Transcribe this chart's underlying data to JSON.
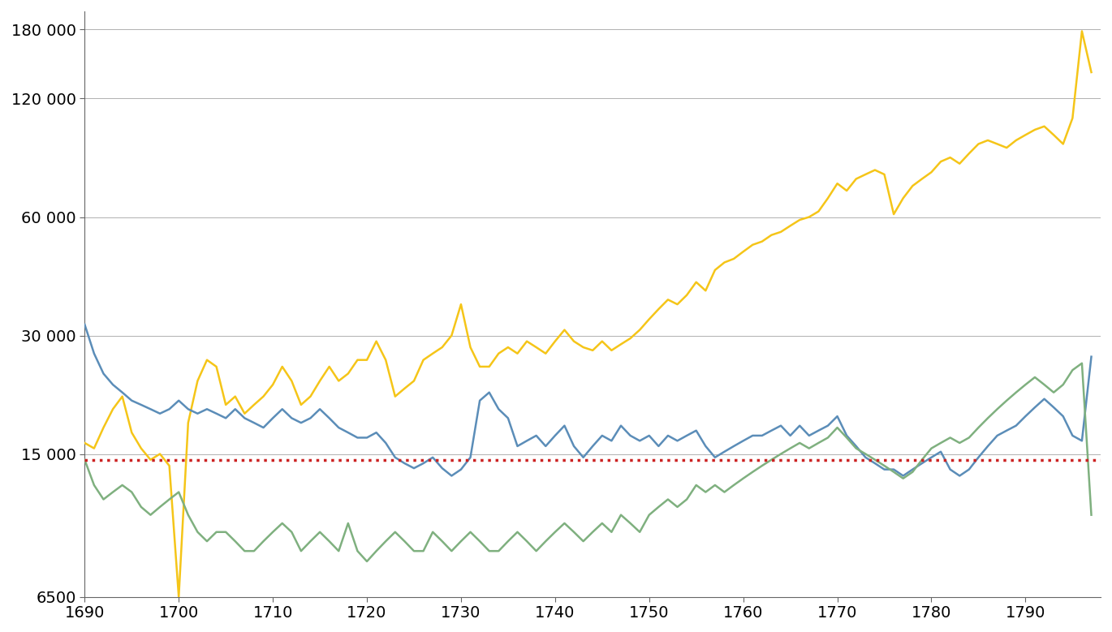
{
  "years": [
    1690,
    1691,
    1692,
    1693,
    1694,
    1695,
    1696,
    1697,
    1698,
    1699,
    1700,
    1701,
    1702,
    1703,
    1704,
    1705,
    1706,
    1707,
    1708,
    1709,
    1710,
    1711,
    1712,
    1713,
    1714,
    1715,
    1716,
    1717,
    1718,
    1719,
    1720,
    1721,
    1722,
    1723,
    1724,
    1725,
    1726,
    1727,
    1728,
    1729,
    1730,
    1731,
    1732,
    1733,
    1734,
    1735,
    1736,
    1737,
    1738,
    1739,
    1740,
    1741,
    1742,
    1743,
    1744,
    1745,
    1746,
    1747,
    1748,
    1749,
    1750,
    1751,
    1752,
    1753,
    1754,
    1755,
    1756,
    1757,
    1758,
    1759,
    1760,
    1761,
    1762,
    1763,
    1764,
    1765,
    1766,
    1767,
    1768,
    1769,
    1770,
    1771,
    1772,
    1773,
    1774,
    1775,
    1776,
    1777,
    1778,
    1779,
    1780,
    1781,
    1782,
    1783,
    1784,
    1785,
    1786,
    1787,
    1788,
    1789,
    1790,
    1791,
    1792,
    1793,
    1794,
    1795,
    1796,
    1797
  ],
  "yellow": [
    16000,
    15500,
    17500,
    19500,
    21000,
    17000,
    15500,
    14500,
    15000,
    14000,
    6500,
    18000,
    23000,
    26000,
    25000,
    20000,
    21000,
    19000,
    20000,
    21000,
    22500,
    25000,
    23000,
    20000,
    21000,
    23000,
    25000,
    23000,
    24000,
    26000,
    26000,
    29000,
    26000,
    21000,
    22000,
    23000,
    26000,
    27000,
    28000,
    30000,
    36000,
    28000,
    25000,
    25000,
    27000,
    28000,
    27000,
    29000,
    28000,
    27000,
    29000,
    31000,
    29000,
    28000,
    27500,
    29000,
    27500,
    28500,
    29500,
    31000,
    33000,
    35000,
    37000,
    36000,
    38000,
    41000,
    39000,
    44000,
    46000,
    47000,
    49000,
    51000,
    52000,
    54000,
    55000,
    57000,
    59000,
    60000,
    62000,
    67000,
    73000,
    70000,
    75000,
    77000,
    79000,
    77000,
    61000,
    67000,
    72000,
    75000,
    78000,
    83000,
    85000,
    82000,
    87000,
    92000,
    94000,
    92000,
    90000,
    94000,
    97000,
    100000,
    102000,
    97000,
    92000,
    107000,
    178000,
    140000
  ],
  "blue": [
    32000,
    27000,
    24000,
    22500,
    21500,
    20500,
    20000,
    19500,
    19000,
    19500,
    20500,
    19500,
    19000,
    19500,
    19000,
    18500,
    19500,
    18500,
    18000,
    17500,
    18500,
    19500,
    18500,
    18000,
    18500,
    19500,
    18500,
    17500,
    17000,
    16500,
    16500,
    17000,
    16000,
    14700,
    14200,
    13800,
    14200,
    14700,
    13800,
    13200,
    13700,
    14700,
    20500,
    21500,
    19500,
    18500,
    15700,
    16200,
    16700,
    15700,
    16700,
    17700,
    15700,
    14700,
    15700,
    16700,
    16200,
    17700,
    16700,
    16200,
    16700,
    15700,
    16700,
    16200,
    16700,
    17200,
    15700,
    14700,
    15200,
    15700,
    16200,
    16700,
    16700,
    17200,
    17700,
    16700,
    17700,
    16700,
    17200,
    17700,
    18700,
    16700,
    15700,
    14700,
    14200,
    13700,
    13700,
    13200,
    13700,
    14200,
    14700,
    15200,
    13700,
    13200,
    13700,
    14700,
    15700,
    16700,
    17200,
    17700,
    18700,
    19700,
    20700,
    19700,
    18700,
    16700,
    16200,
    26500
  ],
  "green": [
    14500,
    12500,
    11500,
    12000,
    12500,
    12000,
    11000,
    10500,
    11000,
    11500,
    12000,
    10500,
    9500,
    9000,
    9500,
    9500,
    9000,
    8500,
    8500,
    9000,
    9500,
    10000,
    9500,
    8500,
    9000,
    9500,
    9000,
    8500,
    10000,
    8500,
    8000,
    8500,
    9000,
    9500,
    9000,
    8500,
    8500,
    9500,
    9000,
    8500,
    9000,
    9500,
    9000,
    8500,
    8500,
    9000,
    9500,
    9000,
    8500,
    9000,
    9500,
    10000,
    9500,
    9000,
    9500,
    10000,
    9500,
    10500,
    10000,
    9500,
    10500,
    11000,
    11500,
    11000,
    11500,
    12500,
    12000,
    12500,
    12000,
    12500,
    13000,
    13500,
    14000,
    14500,
    15000,
    15500,
    16000,
    15500,
    16000,
    16500,
    17500,
    16500,
    15500,
    15000,
    14500,
    14000,
    13500,
    13000,
    13500,
    14500,
    15500,
    16000,
    16500,
    16000,
    16500,
    17500,
    18500,
    19500,
    20500,
    21500,
    22500,
    23500,
    22500,
    21500,
    22500,
    24500,
    25500,
    10500
  ],
  "red_dotted_y": 14500,
  "yellow_color": "#F5C518",
  "blue_color": "#5B8DB8",
  "green_color": "#7FB07F",
  "red_color": "#CC2222",
  "yticks": [
    6500,
    15000,
    30000,
    60000,
    120000,
    180000
  ],
  "ytick_labels": [
    "6500",
    "15 000",
    "30 000",
    "60 000",
    "120 000",
    "180 000"
  ],
  "xticks": [
    1690,
    1700,
    1710,
    1720,
    1730,
    1740,
    1750,
    1760,
    1770,
    1780,
    1790
  ],
  "xlim": [
    1690,
    1798
  ],
  "ylim_log": [
    6500,
    200000
  ],
  "background_color": "#ffffff",
  "grid_color": "#b0b0b0",
  "line_width": 1.8
}
